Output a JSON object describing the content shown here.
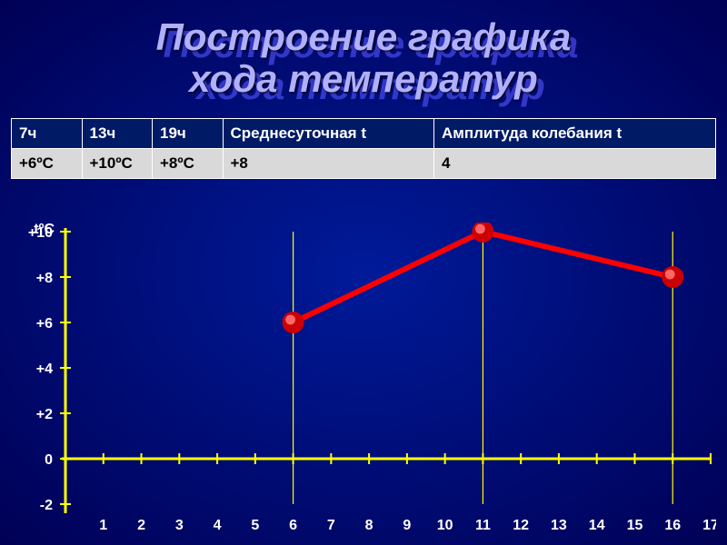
{
  "title": {
    "line1": "Построение графика",
    "line2": "хода температур",
    "fontsize": 42,
    "color_main": "#b0b0ff",
    "color_shadow": "#5555ff"
  },
  "table": {
    "columns": [
      "7ч",
      "13ч",
      "19ч",
      "Среднесуточная t",
      "Амплитуда колебания t"
    ],
    "rows": [
      [
        "+6ºС",
        "+10ºС",
        "+8ºС",
        "+8",
        "4"
      ]
    ],
    "col_widths_pct": [
      10,
      10,
      10,
      30,
      40
    ],
    "header_bg": "#001a66",
    "header_color": "#ffffff",
    "body_bg": "#d9d9d9",
    "body_color": "#000000",
    "border_color": "#ffffff",
    "fontsize": 17
  },
  "chart": {
    "type": "line",
    "y_axis_title": "tºС",
    "y_ticks": [
      -2,
      0,
      2,
      4,
      6,
      8,
      10
    ],
    "y_labels": [
      "-2",
      "0",
      "+2",
      "+4",
      "+6",
      "+8",
      "+10"
    ],
    "ylim": [
      -2,
      10
    ],
    "x_ticks": [
      1,
      2,
      3,
      4,
      5,
      6,
      7,
      8,
      9,
      10,
      11,
      12,
      13,
      14,
      15,
      16,
      17
    ],
    "xlim": [
      0,
      17
    ],
    "grid_x_at": [
      6,
      11,
      16
    ],
    "series": {
      "x": [
        6,
        11,
        16
      ],
      "y": [
        6,
        10,
        8
      ],
      "line_color": "#ff0000",
      "line_width": 6,
      "marker_outer_color": "#cc0000",
      "marker_inner_color": "#ff6666",
      "marker_radius": 12
    },
    "axis_color": "#ffff00",
    "label_color": "#ffffff",
    "background": "transparent",
    "label_fontsize": 16
  },
  "slide_bg": "#001a99"
}
